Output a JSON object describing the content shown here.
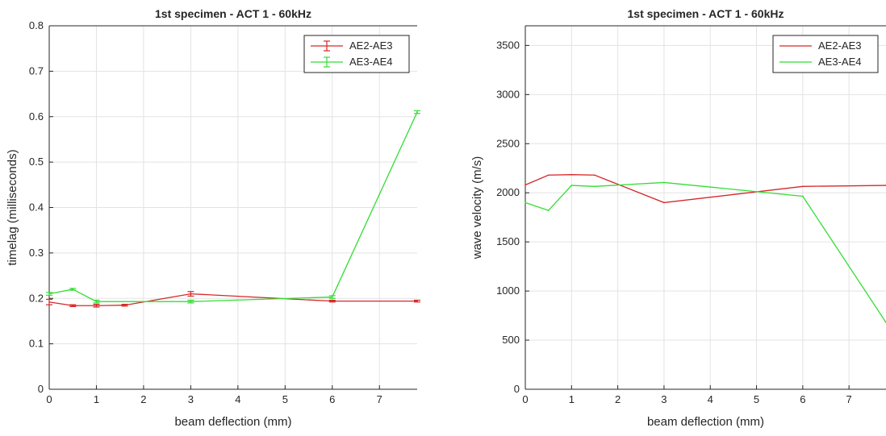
{
  "chart_data": [
    {
      "type": "line",
      "title": "1st specimen - ACT 1 - 60kHz",
      "xlabel": "beam deflection (mm)",
      "ylabel": "timelag (milliseconds)",
      "xlim": [
        0,
        7.8
      ],
      "ylim": [
        0,
        0.8
      ],
      "xticks": [
        0,
        1,
        2,
        3,
        4,
        5,
        6,
        7
      ],
      "yticks": [
        0,
        0.1,
        0.2,
        0.3,
        0.4,
        0.5,
        0.6,
        0.7,
        0.8
      ],
      "grid": true,
      "legend_position": "top-right",
      "error_bars": true,
      "series": [
        {
          "name": "AE2-AE3",
          "color": "#d62728",
          "x": [
            0,
            0.5,
            1,
            1.6,
            3,
            6,
            7.8
          ],
          "y": [
            0.192,
            0.184,
            0.184,
            0.185,
            0.21,
            0.194,
            0.194
          ],
          "err": [
            0.006,
            0.002,
            0.003,
            0.002,
            0.005,
            0.002,
            0.002
          ]
        },
        {
          "name": "AE3-AE4",
          "color": "#33dd33",
          "x": [
            0,
            0.5,
            1,
            3,
            6,
            7.8
          ],
          "y": [
            0.21,
            0.22,
            0.193,
            0.193,
            0.203,
            0.61
          ],
          "err": [
            0.003,
            0.002,
            0.003,
            0.003,
            0.003,
            0.003
          ]
        }
      ]
    },
    {
      "type": "line",
      "title": "1st specimen - ACT 1 - 60kHz",
      "xlabel": "beam deflection (mm)",
      "ylabel": "wave velocity (m/s)",
      "xlim": [
        0,
        7.8
      ],
      "ylim": [
        0,
        3700
      ],
      "xticks": [
        0,
        1,
        2,
        3,
        4,
        5,
        6,
        7
      ],
      "yticks": [
        0,
        500,
        1000,
        1500,
        2000,
        2500,
        3000,
        3500
      ],
      "grid": true,
      "legend_position": "top-right",
      "error_bars": false,
      "series": [
        {
          "name": "AE2-AE3",
          "color": "#d62728",
          "x": [
            0,
            0.5,
            1,
            1.5,
            3,
            6,
            7.8
          ],
          "y": [
            2080,
            2180,
            2185,
            2180,
            1900,
            2065,
            2075
          ]
        },
        {
          "name": "AE3-AE4",
          "color": "#33dd33",
          "x": [
            0,
            0.5,
            1,
            1.5,
            3,
            6,
            7.8
          ],
          "y": [
            1900,
            1820,
            2075,
            2065,
            2105,
            1965,
            680
          ]
        }
      ]
    }
  ]
}
